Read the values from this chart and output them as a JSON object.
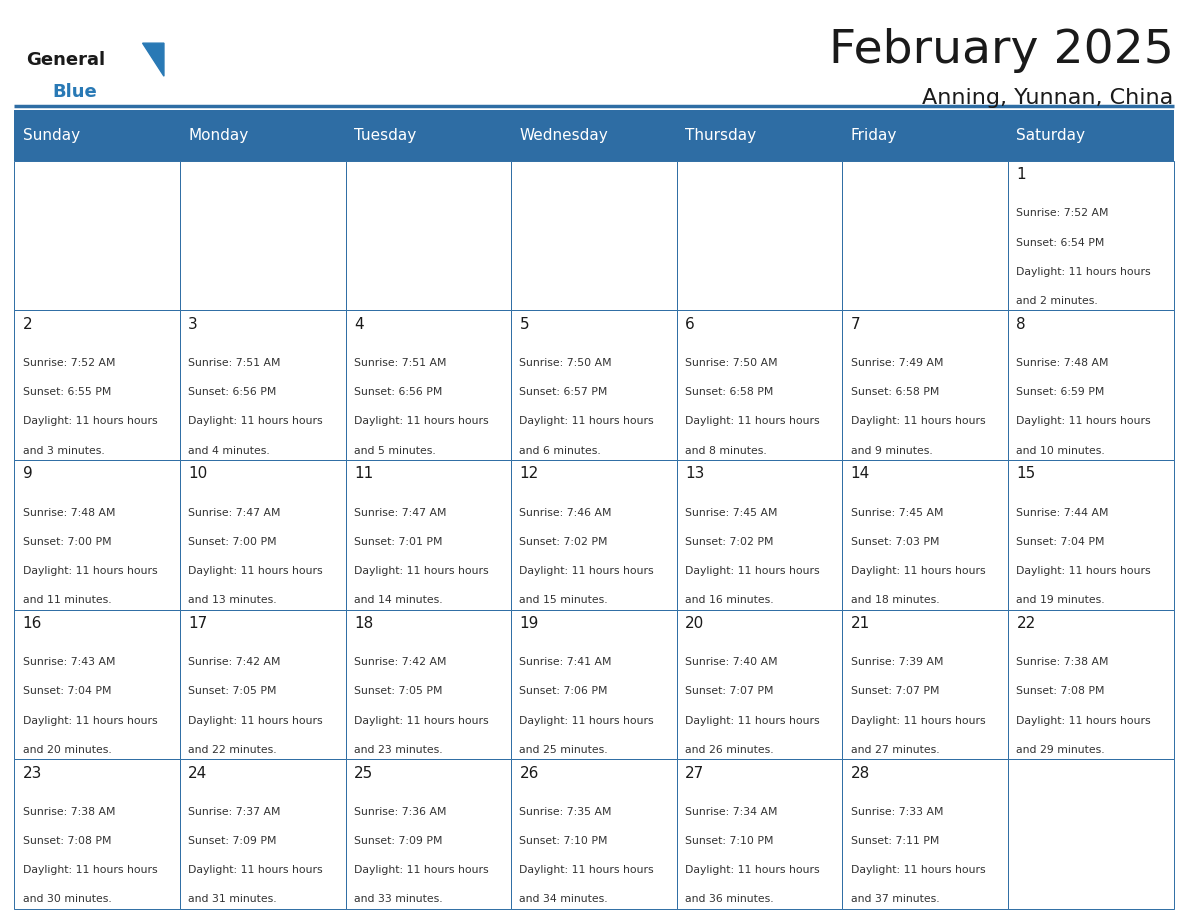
{
  "title": "February 2025",
  "subtitle": "Anning, Yunnan, China",
  "days_of_week": [
    "Sunday",
    "Monday",
    "Tuesday",
    "Wednesday",
    "Thursday",
    "Friday",
    "Saturday"
  ],
  "header_bg": "#2e6da4",
  "header_text": "#ffffff",
  "border_color": "#2e6da4",
  "cell_text_color": "#333333",
  "calendar_data": [
    [
      null,
      null,
      null,
      null,
      null,
      null,
      {
        "day": 1,
        "sunrise": "7:52 AM",
        "sunset": "6:54 PM",
        "daylight": "11 hours and 2 minutes."
      }
    ],
    [
      {
        "day": 2,
        "sunrise": "7:52 AM",
        "sunset": "6:55 PM",
        "daylight": "11 hours and 3 minutes."
      },
      {
        "day": 3,
        "sunrise": "7:51 AM",
        "sunset": "6:56 PM",
        "daylight": "11 hours and 4 minutes."
      },
      {
        "day": 4,
        "sunrise": "7:51 AM",
        "sunset": "6:56 PM",
        "daylight": "11 hours and 5 minutes."
      },
      {
        "day": 5,
        "sunrise": "7:50 AM",
        "sunset": "6:57 PM",
        "daylight": "11 hours and 6 minutes."
      },
      {
        "day": 6,
        "sunrise": "7:50 AM",
        "sunset": "6:58 PM",
        "daylight": "11 hours and 8 minutes."
      },
      {
        "day": 7,
        "sunrise": "7:49 AM",
        "sunset": "6:58 PM",
        "daylight": "11 hours and 9 minutes."
      },
      {
        "day": 8,
        "sunrise": "7:48 AM",
        "sunset": "6:59 PM",
        "daylight": "11 hours and 10 minutes."
      }
    ],
    [
      {
        "day": 9,
        "sunrise": "7:48 AM",
        "sunset": "7:00 PM",
        "daylight": "11 hours and 11 minutes."
      },
      {
        "day": 10,
        "sunrise": "7:47 AM",
        "sunset": "7:00 PM",
        "daylight": "11 hours and 13 minutes."
      },
      {
        "day": 11,
        "sunrise": "7:47 AM",
        "sunset": "7:01 PM",
        "daylight": "11 hours and 14 minutes."
      },
      {
        "day": 12,
        "sunrise": "7:46 AM",
        "sunset": "7:02 PM",
        "daylight": "11 hours and 15 minutes."
      },
      {
        "day": 13,
        "sunrise": "7:45 AM",
        "sunset": "7:02 PM",
        "daylight": "11 hours and 16 minutes."
      },
      {
        "day": 14,
        "sunrise": "7:45 AM",
        "sunset": "7:03 PM",
        "daylight": "11 hours and 18 minutes."
      },
      {
        "day": 15,
        "sunrise": "7:44 AM",
        "sunset": "7:04 PM",
        "daylight": "11 hours and 19 minutes."
      }
    ],
    [
      {
        "day": 16,
        "sunrise": "7:43 AM",
        "sunset": "7:04 PM",
        "daylight": "11 hours and 20 minutes."
      },
      {
        "day": 17,
        "sunrise": "7:42 AM",
        "sunset": "7:05 PM",
        "daylight": "11 hours and 22 minutes."
      },
      {
        "day": 18,
        "sunrise": "7:42 AM",
        "sunset": "7:05 PM",
        "daylight": "11 hours and 23 minutes."
      },
      {
        "day": 19,
        "sunrise": "7:41 AM",
        "sunset": "7:06 PM",
        "daylight": "11 hours and 25 minutes."
      },
      {
        "day": 20,
        "sunrise": "7:40 AM",
        "sunset": "7:07 PM",
        "daylight": "11 hours and 26 minutes."
      },
      {
        "day": 21,
        "sunrise": "7:39 AM",
        "sunset": "7:07 PM",
        "daylight": "11 hours and 27 minutes."
      },
      {
        "day": 22,
        "sunrise": "7:38 AM",
        "sunset": "7:08 PM",
        "daylight": "11 hours and 29 minutes."
      }
    ],
    [
      {
        "day": 23,
        "sunrise": "7:38 AM",
        "sunset": "7:08 PM",
        "daylight": "11 hours and 30 minutes."
      },
      {
        "day": 24,
        "sunrise": "7:37 AM",
        "sunset": "7:09 PM",
        "daylight": "11 hours and 31 minutes."
      },
      {
        "day": 25,
        "sunrise": "7:36 AM",
        "sunset": "7:09 PM",
        "daylight": "11 hours and 33 minutes."
      },
      {
        "day": 26,
        "sunrise": "7:35 AM",
        "sunset": "7:10 PM",
        "daylight": "11 hours and 34 minutes."
      },
      {
        "day": 27,
        "sunrise": "7:34 AM",
        "sunset": "7:10 PM",
        "daylight": "11 hours and 36 minutes."
      },
      {
        "day": 28,
        "sunrise": "7:33 AM",
        "sunset": "7:11 PM",
        "daylight": "11 hours and 37 minutes."
      },
      null
    ]
  ]
}
